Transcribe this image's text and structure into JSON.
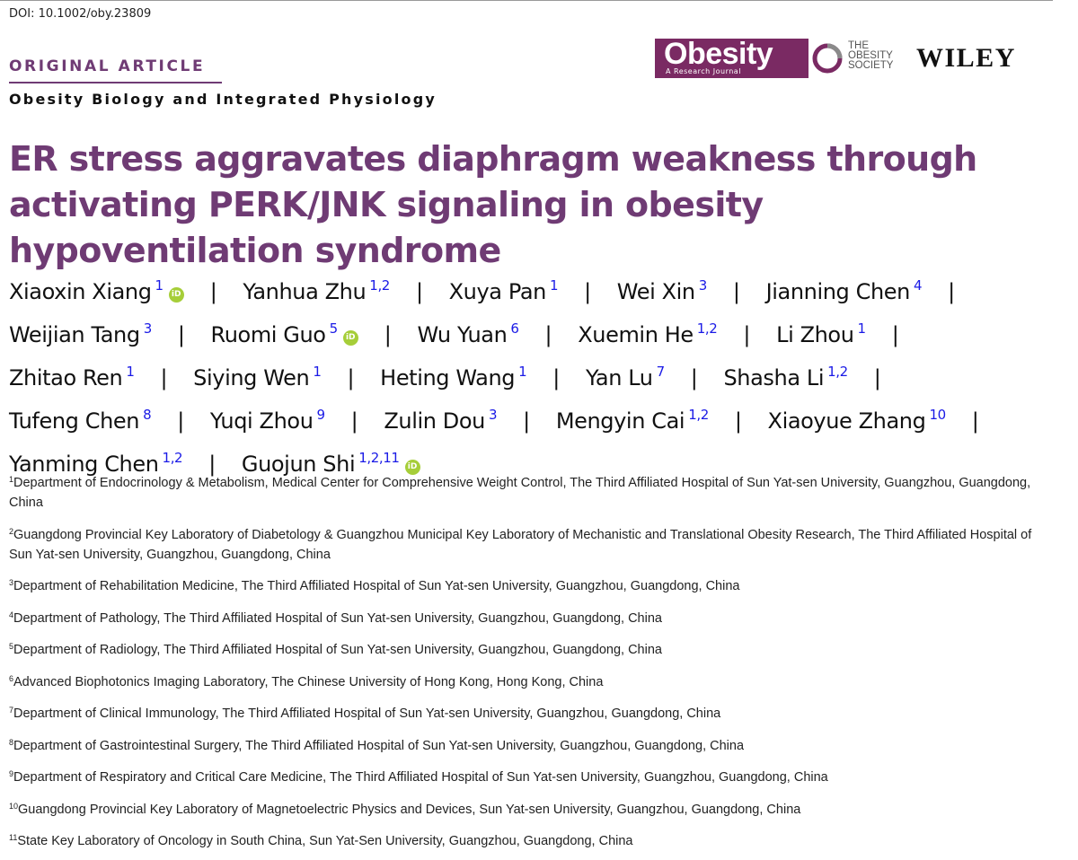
{
  "doi": "DOI: 10.1002/oby.23809",
  "article_type": "ORIGINAL ARTICLE",
  "section": "Obesity Biology and Integrated Physiology",
  "journal": {
    "name": "Obesity",
    "subtitle": "A Research Journal",
    "brand_color": "#7a2a63"
  },
  "society": {
    "line1": "THE",
    "line2": "OBESITY",
    "line3": "SOCIETY"
  },
  "publisher": "WILEY",
  "title": "ER stress aggravates diaphragm weakness through activating PERK/JNK signaling in obesity hypoventilation syndrome",
  "orcid_label": "iD",
  "separator": "|",
  "authors": [
    {
      "name": "Xiaoxin Xiang",
      "sup": "1"
    },
    {
      "name": "Yanhua Zhu",
      "sup": "1,2"
    },
    {
      "name": "Xuya Pan",
      "sup": "1"
    },
    {
      "name": "Wei Xin",
      "sup": "3"
    },
    {
      "name": "Jianning Chen",
      "sup": "4"
    },
    {
      "name": "Weijian Tang",
      "sup": "3"
    },
    {
      "name": "Ruomi Guo",
      "sup": "5"
    },
    {
      "name": "Wu Yuan",
      "sup": "6"
    },
    {
      "name": "Xuemin He",
      "sup": "1,2"
    },
    {
      "name": "Li Zhou",
      "sup": "1"
    },
    {
      "name": "Zhitao Ren",
      "sup": "1"
    },
    {
      "name": "Siying Wen",
      "sup": "1"
    },
    {
      "name": "Heting Wang",
      "sup": "1"
    },
    {
      "name": "Yan Lu",
      "sup": "7"
    },
    {
      "name": "Shasha Li",
      "sup": "1,2"
    },
    {
      "name": "Tufeng Chen",
      "sup": "8"
    },
    {
      "name": "Yuqi Zhou",
      "sup": "9"
    },
    {
      "name": "Zulin Dou",
      "sup": "3"
    },
    {
      "name": "Mengyin Cai",
      "sup": "1,2"
    },
    {
      "name": "Xiaoyue Zhang",
      "sup": "10"
    },
    {
      "name": "Yanming Chen",
      "sup": "1,2"
    },
    {
      "name": "Guojun Shi",
      "sup": "1,2,11"
    }
  ],
  "affiliations": [
    {
      "num": "1",
      "text": "Department of Endocrinology & Metabolism, Medical Center for Comprehensive Weight Control, The Third Affiliated Hospital of Sun Yat-sen University, Guangzhou, Guangdong, China"
    },
    {
      "num": "2",
      "text": "Guangdong Provincial Key Laboratory of Diabetology & Guangzhou Municipal Key Laboratory of Mechanistic and Translational Obesity Research, The Third Affiliated Hospital of Sun Yat-sen University, Guangzhou, Guangdong, China"
    },
    {
      "num": "3",
      "text": "Department of Rehabilitation Medicine, The Third Affiliated Hospital of Sun Yat-sen University, Guangzhou, Guangdong, China"
    },
    {
      "num": "4",
      "text": "Department of Pathology, The Third Affiliated Hospital of Sun Yat-sen University, Guangzhou, Guangdong, China"
    },
    {
      "num": "5",
      "text": "Department of Radiology, The Third Affiliated Hospital of Sun Yat-sen University, Guangzhou, Guangdong, China"
    },
    {
      "num": "6",
      "text": "Advanced Biophotonics Imaging Laboratory, The Chinese University of Hong Kong, Hong Kong, China"
    },
    {
      "num": "7",
      "text": "Department of Clinical Immunology, The Third Affiliated Hospital of Sun Yat-sen University, Guangzhou, Guangdong, China"
    },
    {
      "num": "8",
      "text": "Department of Gastrointestinal Surgery, The Third Affiliated Hospital of Sun Yat-sen University, Guangzhou, Guangdong, China"
    },
    {
      "num": "9",
      "text": "Department of Respiratory and Critical Care Medicine, The Third Affiliated Hospital of Sun Yat-sen University, Guangzhou, Guangdong, China"
    },
    {
      "num": "10",
      "text": "Guangdong Provincial Key Laboratory of Magnetoelectric Physics and Devices, Sun Yat-sen University, Guangzhou, Guangdong, China"
    },
    {
      "num": "11",
      "text": "State Key Laboratory of Oncology in South China, Sun Yat-Sen University, Guangzhou, Guangdong, China"
    }
  ],
  "colors": {
    "accent": "#6f3b74",
    "superscript": "#1a1ae6",
    "orcid": "#a6ce39"
  }
}
